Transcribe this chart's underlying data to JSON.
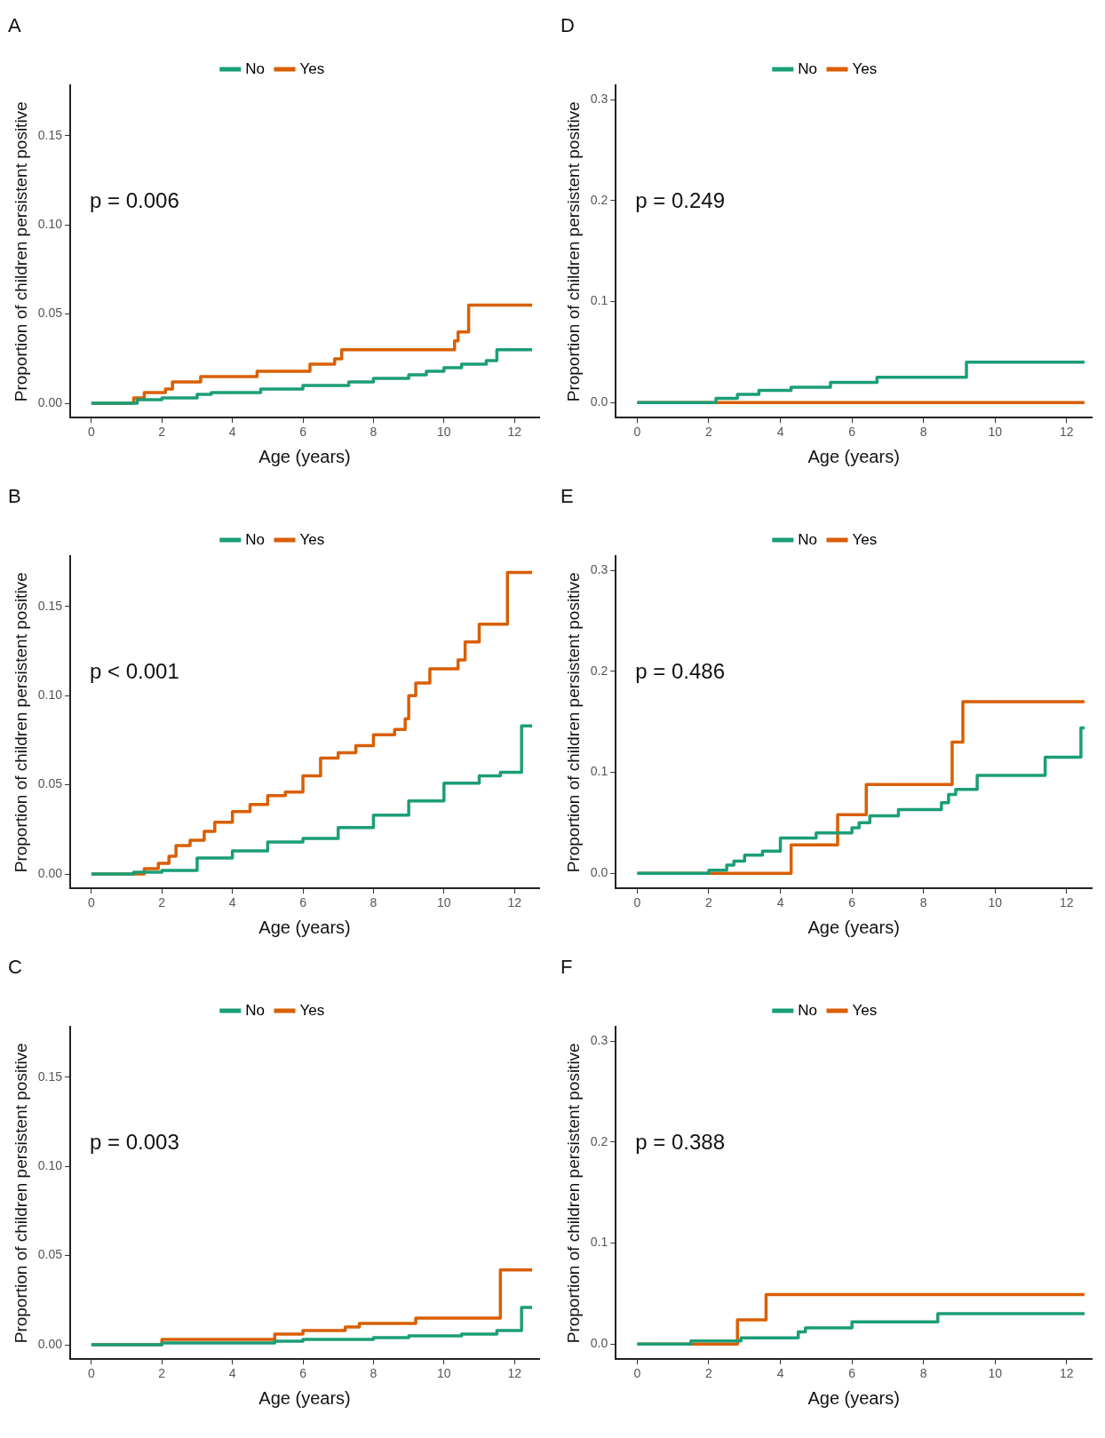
{
  "chart_data": [
    {
      "type": "step",
      "title": "A",
      "xlabel": "Age (years)",
      "ylabel": "Proportion of children persistent positive",
      "annotations": [
        "p = 0.006"
      ],
      "legend": "top",
      "grid": false,
      "xlim": [
        -0.6,
        12.7
      ],
      "xticks": [
        0,
        2,
        4,
        6,
        8,
        10,
        12
      ],
      "ylim": [
        -0.008,
        0.178
      ],
      "yticks": [
        {
          "value": 0,
          "label": "0.00"
        },
        {
          "value": 0.05,
          "label": "0.05"
        },
        {
          "value": 0.1,
          "label": "0.10"
        },
        {
          "value": 0.15,
          "label": "0.15"
        }
      ],
      "series": [
        {
          "name": "No",
          "color": "#1b9e77",
          "x": [
            0,
            1.3,
            2,
            3,
            3.4,
            4.8,
            6,
            7.3,
            8,
            9,
            9.5,
            10,
            10.5,
            11.2,
            11.5,
            12.5
          ],
          "values": [
            0,
            0.002,
            0.003,
            0.005,
            0.006,
            0.008,
            0.01,
            0.012,
            0.014,
            0.016,
            0.018,
            0.02,
            0.022,
            0.024,
            0.03,
            0.03
          ]
        },
        {
          "name": "Yes",
          "color": "#d95f02",
          "x": [
            0,
            1.2,
            1.5,
            2.1,
            2.3,
            3.1,
            4.7,
            6.2,
            6.9,
            7.1,
            10.3,
            10.4,
            10.7,
            12.5
          ],
          "values": [
            0,
            0.003,
            0.006,
            0.008,
            0.012,
            0.015,
            0.018,
            0.022,
            0.025,
            0.03,
            0.035,
            0.04,
            0.055,
            0.055
          ]
        }
      ]
    },
    {
      "type": "step",
      "title": "D",
      "xlabel": "Age (years)",
      "ylabel": "Proportion of children persistent positive",
      "annotations": [
        "p = 0.249"
      ],
      "legend": "top",
      "grid": false,
      "xlim": [
        -0.6,
        12.7
      ],
      "xticks": [
        0,
        2,
        4,
        6,
        8,
        10,
        12
      ],
      "ylim": [
        -0.015,
        0.314
      ],
      "yticks": [
        {
          "value": 0,
          "label": "0.0"
        },
        {
          "value": 0.1,
          "label": "0.1"
        },
        {
          "value": 0.2,
          "label": "0.2"
        },
        {
          "value": 0.3,
          "label": "0.3"
        }
      ],
      "series": [
        {
          "name": "No",
          "color": "#1b9e77",
          "x": [
            0,
            2.2,
            2.8,
            3.4,
            4.3,
            5.4,
            6.7,
            9.2,
            12.5
          ],
          "values": [
            0,
            0.004,
            0.008,
            0.012,
            0.015,
            0.02,
            0.025,
            0.04,
            0.04
          ]
        },
        {
          "name": "Yes",
          "color": "#d95f02",
          "x": [
            0,
            12.5
          ],
          "values": [
            0,
            0
          ]
        }
      ]
    },
    {
      "type": "step",
      "title": "B",
      "xlabel": "Age (years)",
      "ylabel": "Proportion of children persistent positive",
      "annotations": [
        "p < 0.001"
      ],
      "legend": "top",
      "grid": false,
      "xlim": [
        -0.6,
        12.7
      ],
      "xticks": [
        0,
        2,
        4,
        6,
        8,
        10,
        12
      ],
      "ylim": [
        -0.008,
        0.178
      ],
      "yticks": [
        {
          "value": 0,
          "label": "0.00"
        },
        {
          "value": 0.05,
          "label": "0.05"
        },
        {
          "value": 0.1,
          "label": "0.10"
        },
        {
          "value": 0.15,
          "label": "0.15"
        }
      ],
      "series": [
        {
          "name": "No",
          "color": "#1b9e77",
          "x": [
            0,
            1.2,
            2,
            3,
            4,
            5,
            6,
            7,
            8,
            9,
            10,
            11,
            11.6,
            12.2,
            12.5
          ],
          "values": [
            0,
            0.001,
            0.002,
            0.009,
            0.013,
            0.018,
            0.02,
            0.026,
            0.033,
            0.041,
            0.051,
            0.055,
            0.057,
            0.083,
            0.083
          ]
        },
        {
          "name": "Yes",
          "color": "#d95f02",
          "x": [
            0,
            1.5,
            1.9,
            2.2,
            2.4,
            2.8,
            3.2,
            3.5,
            4,
            4.5,
            5,
            5.5,
            6,
            6.5,
            7,
            7.5,
            8,
            8.6,
            8.9,
            9,
            9.2,
            9.6,
            10.4,
            10.6,
            11,
            11.8,
            12.5
          ],
          "values": [
            0,
            0.003,
            0.006,
            0.01,
            0.016,
            0.019,
            0.024,
            0.029,
            0.035,
            0.039,
            0.044,
            0.046,
            0.055,
            0.065,
            0.068,
            0.072,
            0.078,
            0.081,
            0.087,
            0.1,
            0.107,
            0.115,
            0.12,
            0.13,
            0.14,
            0.169,
            0.169
          ]
        }
      ]
    },
    {
      "type": "step",
      "title": "E",
      "xlabel": "Age (years)",
      "ylabel": "Proportion of children persistent positive",
      "annotations": [
        "p = 0.486"
      ],
      "legend": "top",
      "grid": false,
      "xlim": [
        -0.6,
        12.7
      ],
      "xticks": [
        0,
        2,
        4,
        6,
        8,
        10,
        12
      ],
      "ylim": [
        -0.015,
        0.314
      ],
      "yticks": [
        {
          "value": 0,
          "label": "0.0"
        },
        {
          "value": 0.1,
          "label": "0.1"
        },
        {
          "value": 0.2,
          "label": "0.2"
        },
        {
          "value": 0.3,
          "label": "0.3"
        }
      ],
      "series": [
        {
          "name": "No",
          "color": "#1b9e77",
          "x": [
            0,
            2,
            2.5,
            2.7,
            3,
            3.5,
            4,
            5,
            6,
            6.2,
            6.5,
            7.3,
            8.5,
            8.7,
            8.9,
            9.5,
            11.4,
            12.4,
            12.5
          ],
          "values": [
            0,
            0.003,
            0.008,
            0.012,
            0.018,
            0.022,
            0.035,
            0.04,
            0.045,
            0.05,
            0.057,
            0.063,
            0.07,
            0.078,
            0.083,
            0.097,
            0.115,
            0.144,
            0.144
          ]
        },
        {
          "name": "Yes",
          "color": "#d95f02",
          "x": [
            0,
            4.3,
            5.6,
            6.4,
            8.8,
            9.1,
            12.5
          ],
          "values": [
            0,
            0.028,
            0.058,
            0.088,
            0.13,
            0.17,
            0.17
          ]
        }
      ]
    },
    {
      "type": "step",
      "title": "C",
      "xlabel": "Age (years)",
      "ylabel": "Proportion of children persistent positive",
      "annotations": [
        "p = 0.003"
      ],
      "legend": "top",
      "grid": false,
      "xlim": [
        -0.6,
        12.7
      ],
      "xticks": [
        0,
        2,
        4,
        6,
        8,
        10,
        12
      ],
      "ylim": [
        -0.008,
        0.178
      ],
      "yticks": [
        {
          "value": 0,
          "label": "0.00"
        },
        {
          "value": 0.05,
          "label": "0.05"
        },
        {
          "value": 0.1,
          "label": "0.10"
        },
        {
          "value": 0.15,
          "label": "0.15"
        }
      ],
      "series": [
        {
          "name": "No",
          "color": "#1b9e77",
          "x": [
            0,
            2,
            5.2,
            6,
            8,
            9,
            10.5,
            11.5,
            12.2,
            12.5
          ],
          "values": [
            0,
            0.001,
            0.002,
            0.003,
            0.004,
            0.005,
            0.006,
            0.008,
            0.021,
            0.021
          ]
        },
        {
          "name": "Yes",
          "color": "#d95f02",
          "x": [
            0,
            2,
            5.2,
            6,
            7.2,
            7.6,
            9.2,
            11.6,
            12.5
          ],
          "values": [
            0,
            0.003,
            0.006,
            0.008,
            0.01,
            0.012,
            0.015,
            0.042,
            0.042
          ]
        }
      ]
    },
    {
      "type": "step",
      "title": "F",
      "xlabel": "Age (years)",
      "ylabel": "Proportion of children persistent positive",
      "annotations": [
        "p = 0.388"
      ],
      "legend": "top",
      "grid": false,
      "xlim": [
        -0.6,
        12.7
      ],
      "xticks": [
        0,
        2,
        4,
        6,
        8,
        10,
        12
      ],
      "ylim": [
        -0.015,
        0.314
      ],
      "yticks": [
        {
          "value": 0,
          "label": "0.0"
        },
        {
          "value": 0.1,
          "label": "0.1"
        },
        {
          "value": 0.2,
          "label": "0.2"
        },
        {
          "value": 0.3,
          "label": "0.3"
        }
      ],
      "series": [
        {
          "name": "No",
          "color": "#1b9e77",
          "x": [
            0,
            1.5,
            2.9,
            4.5,
            4.7,
            6,
            8.4,
            12.5
          ],
          "values": [
            0,
            0.003,
            0.006,
            0.012,
            0.016,
            0.022,
            0.03,
            0.03
          ]
        },
        {
          "name": "Yes",
          "color": "#d95f02",
          "x": [
            0,
            2.8,
            3.6,
            12.5
          ],
          "values": [
            0,
            0.024,
            0.049,
            0.049
          ]
        }
      ]
    }
  ]
}
